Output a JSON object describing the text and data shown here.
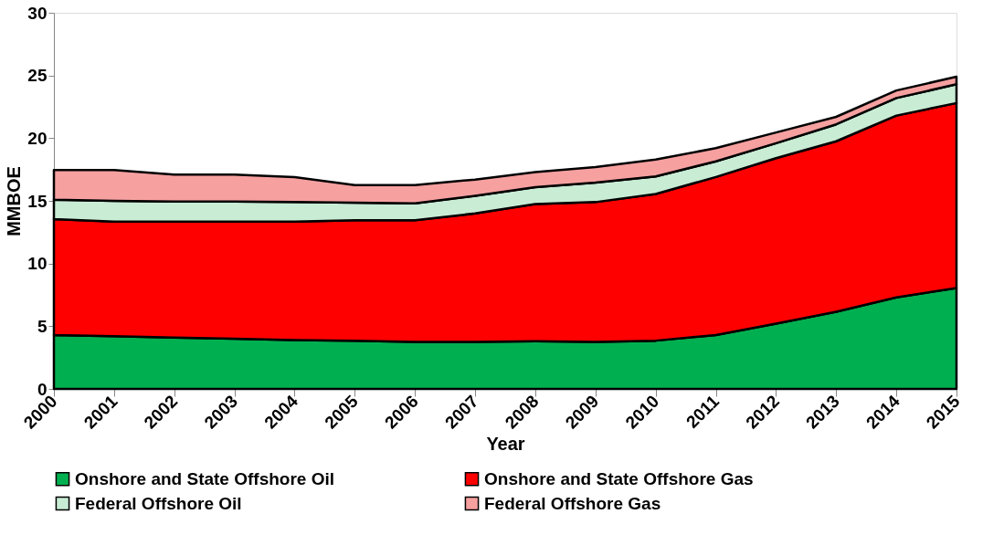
{
  "chart_data": {
    "type": "area",
    "stacked": true,
    "xlabel": "Year",
    "ylabel": "MMBOE",
    "categories": [
      "2000",
      "2001",
      "2002",
      "2003",
      "2004",
      "2005",
      "2006",
      "2007",
      "2008",
      "2009",
      "2010",
      "2011",
      "2012",
      "2013",
      "2014",
      "2015"
    ],
    "series": [
      {
        "name": "Onshore and State Offshore Oil",
        "color": "#00b050",
        "values": [
          4.3,
          4.2,
          4.1,
          4.0,
          3.9,
          3.85,
          3.75,
          3.75,
          3.8,
          3.75,
          3.85,
          4.3,
          5.2,
          6.15,
          7.3,
          8.05
        ]
      },
      {
        "name": "Onshore and State Offshore Gas",
        "color": "#ff0000",
        "values": [
          9.25,
          9.15,
          9.25,
          9.35,
          9.45,
          9.6,
          9.7,
          10.25,
          10.95,
          11.15,
          11.7,
          12.6,
          13.2,
          13.6,
          14.5,
          14.75
        ]
      },
      {
        "name": "Federal Offshore Oil",
        "color": "#c8ecd4",
        "values": [
          1.55,
          1.65,
          1.6,
          1.6,
          1.55,
          1.4,
          1.35,
          1.4,
          1.35,
          1.55,
          1.4,
          1.25,
          1.2,
          1.35,
          1.4,
          1.5
        ]
      },
      {
        "name": "Federal Offshore Gas",
        "color": "#f7a0a0",
        "values": [
          2.35,
          2.45,
          2.15,
          2.15,
          2.0,
          1.4,
          1.45,
          1.3,
          1.2,
          1.25,
          1.35,
          1.05,
          0.85,
          0.6,
          0.6,
          0.6
        ]
      }
    ],
    "ylim": [
      0,
      30
    ],
    "yticks": [
      0,
      5,
      10,
      15,
      20,
      25,
      30
    ],
    "grid": false,
    "legend": "bottom"
  }
}
